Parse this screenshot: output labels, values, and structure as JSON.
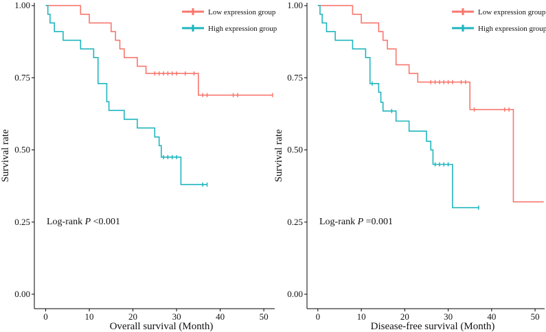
{
  "chart_data": [
    {
      "type": "step",
      "xlabel": "Overall  survival (Month)",
      "ylabel": "Survival rate",
      "xlim": [
        -2.6,
        52.5
      ],
      "ylim": [
        -0.05,
        1.01
      ],
      "xticks": [
        0,
        10,
        20,
        30,
        40,
        50
      ],
      "yticks": [
        {
          "value": 0,
          "label": "0.00"
        },
        {
          "value": 0.25,
          "label": "0.25"
        },
        {
          "value": 0.5,
          "label": "0.50"
        },
        {
          "value": 0.75,
          "label": "0.75"
        },
        {
          "value": 1,
          "label": "1.00"
        }
      ],
      "legend": "upper right",
      "annotation": {
        "prefix": "Log-rank",
        "stat": "P",
        "value": "<0.001"
      },
      "series": [
        {
          "name": "Low expression group",
          "color": "#f8766d",
          "x": [
            0,
            8,
            10,
            15,
            16,
            17,
            18,
            21,
            23,
            35,
            52
          ],
          "values": [
            1.0,
            0.97,
            0.94,
            0.91,
            0.88,
            0.85,
            0.82,
            0.79,
            0.765,
            0.69,
            0.69
          ],
          "censor_x": [
            25,
            26,
            27,
            28,
            29,
            30,
            32,
            34,
            36,
            37,
            43,
            44,
            52
          ],
          "censor_values": [
            0.765,
            0.765,
            0.765,
            0.765,
            0.765,
            0.765,
            0.765,
            0.765,
            0.69,
            0.69,
            0.69,
            0.69,
            0.69
          ]
        },
        {
          "name": "High expression group",
          "color": "#1fb5be",
          "x": [
            0,
            0.5,
            1,
            2,
            4,
            8,
            11,
            12,
            14,
            14.5,
            15,
            18,
            21,
            25,
            26,
            26.5,
            31,
            37
          ],
          "values": [
            1.0,
            0.97,
            0.94,
            0.91,
            0.88,
            0.85,
            0.82,
            0.73,
            0.667,
            0.637,
            0.637,
            0.606,
            0.576,
            0.545,
            0.515,
            0.475,
            0.38,
            0.38
          ],
          "censor_x": [
            27,
            28,
            29,
            30,
            36,
            37
          ],
          "censor_values": [
            0.475,
            0.475,
            0.475,
            0.475,
            0.38,
            0.38
          ]
        }
      ]
    },
    {
      "type": "step",
      "xlabel": "Disease-free survival (Month)",
      "ylabel": "Survival rate",
      "xlim": [
        -2.5,
        52.2
      ],
      "ylim": [
        -0.05,
        1.01
      ],
      "xticks": [
        0,
        10,
        20,
        30,
        40,
        50
      ],
      "yticks": [
        {
          "value": 0,
          "label": "0.00"
        },
        {
          "value": 0.25,
          "label": "0.25"
        },
        {
          "value": 0.5,
          "label": "0.50"
        },
        {
          "value": 0.75,
          "label": "0.75"
        },
        {
          "value": 1,
          "label": "1.00"
        }
      ],
      "legend": "upper right",
      "annotation": {
        "prefix": "Log-rank",
        "stat": "P",
        "value": "=0.001"
      },
      "series": [
        {
          "name": "Low expression group",
          "color": "#f8766d",
          "x": [
            0,
            8,
            10,
            14,
            15,
            16,
            18,
            21,
            23,
            35,
            45,
            52
          ],
          "values": [
            1.0,
            0.97,
            0.94,
            0.91,
            0.88,
            0.85,
            0.795,
            0.765,
            0.735,
            0.64,
            0.32,
            0.32
          ],
          "censor_x": [
            26,
            27,
            28,
            29,
            30,
            31,
            33,
            34,
            36,
            43,
            44
          ],
          "censor_values": [
            0.735,
            0.735,
            0.735,
            0.735,
            0.735,
            0.735,
            0.735,
            0.735,
            0.64,
            0.64,
            0.64
          ]
        },
        {
          "name": "High expression group",
          "color": "#1fb5be",
          "x": [
            0,
            0.5,
            1,
            2,
            4,
            8,
            11,
            12,
            14,
            14.5,
            15,
            18,
            21,
            25,
            26,
            26.5,
            31,
            37
          ],
          "values": [
            1.0,
            0.97,
            0.94,
            0.91,
            0.88,
            0.85,
            0.82,
            0.73,
            0.7,
            0.665,
            0.635,
            0.6,
            0.565,
            0.53,
            0.5,
            0.45,
            0.3,
            0.3
          ],
          "censor_x": [
            12.5,
            17,
            27,
            28,
            29,
            30,
            37
          ],
          "censor_values": [
            0.73,
            0.635,
            0.45,
            0.45,
            0.45,
            0.45,
            0.3
          ]
        }
      ]
    }
  ]
}
